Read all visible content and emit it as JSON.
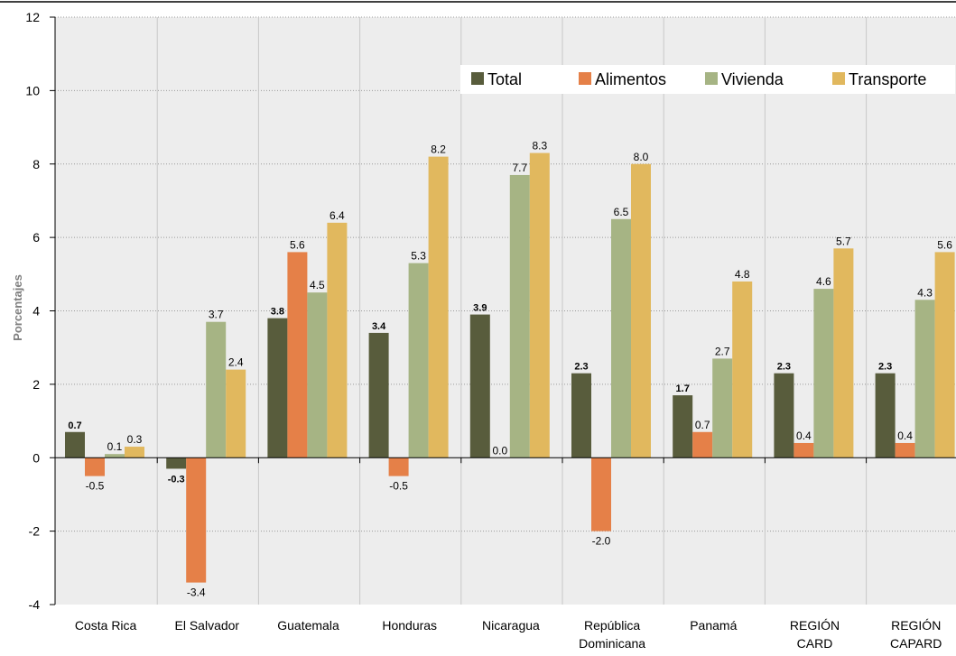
{
  "chart_data": {
    "type": "bar",
    "categories": [
      [
        "Costa Rica"
      ],
      [
        "El Salvador"
      ],
      [
        "Guatemala"
      ],
      [
        "Honduras"
      ],
      [
        "Nicaragua"
      ],
      [
        "República",
        "Dominicana"
      ],
      [
        "Panamá"
      ],
      [
        "REGIÓN",
        "CARD"
      ],
      [
        "REGIÓN",
        "CAPARD"
      ]
    ],
    "series": [
      {
        "name": "Total",
        "color": "#585c3c",
        "values": [
          0.7,
          -0.3,
          3.8,
          3.4,
          3.9,
          2.3,
          1.7,
          2.3,
          2.3
        ],
        "labels": [
          "0.7",
          "-0.3",
          "3.8",
          "3.4",
          "3.9",
          "2.3",
          "1.7",
          "2.3",
          "2.3"
        ]
      },
      {
        "name": "Alimentos",
        "color": "#e58048",
        "values": [
          -0.5,
          -3.4,
          5.6,
          -0.5,
          0.0,
          -2.0,
          0.7,
          0.4,
          0.4
        ],
        "labels": [
          "-0.5",
          "-3.4",
          "5.6",
          "-0.5",
          "0.0",
          "-2.0",
          "0.7",
          "0.4",
          "0.4"
        ]
      },
      {
        "name": "Vivienda",
        "color": "#a6b484",
        "values": [
          0.1,
          3.7,
          4.5,
          5.3,
          7.7,
          6.5,
          2.7,
          4.6,
          4.3
        ],
        "labels": [
          "0.1",
          "3.7",
          "4.5",
          "5.3",
          "7.7",
          "6.5",
          "2.7",
          "4.6",
          "4.3"
        ]
      },
      {
        "name": "Transporte",
        "color": "#e1b85e",
        "values": [
          0.3,
          2.4,
          6.4,
          8.2,
          8.3,
          8.0,
          4.8,
          5.7,
          5.6
        ],
        "labels": [
          "0.3",
          "2.4",
          "6.4",
          "8.2",
          "8.3",
          "8.0",
          "4.8",
          "5.7",
          "5.6"
        ]
      }
    ],
    "ylabel": "Porcentajes",
    "xlabel": "",
    "ylim": [
      -4,
      12
    ],
    "yticks": [
      -4,
      -2,
      0,
      2,
      4,
      6,
      8,
      10,
      12
    ],
    "ytick_labels": [
      "-4",
      "-2",
      "0",
      "2",
      "4",
      "6",
      "8",
      "10",
      "12"
    ],
    "grid": true,
    "legend": "top-right",
    "background_color": "#ededed"
  }
}
